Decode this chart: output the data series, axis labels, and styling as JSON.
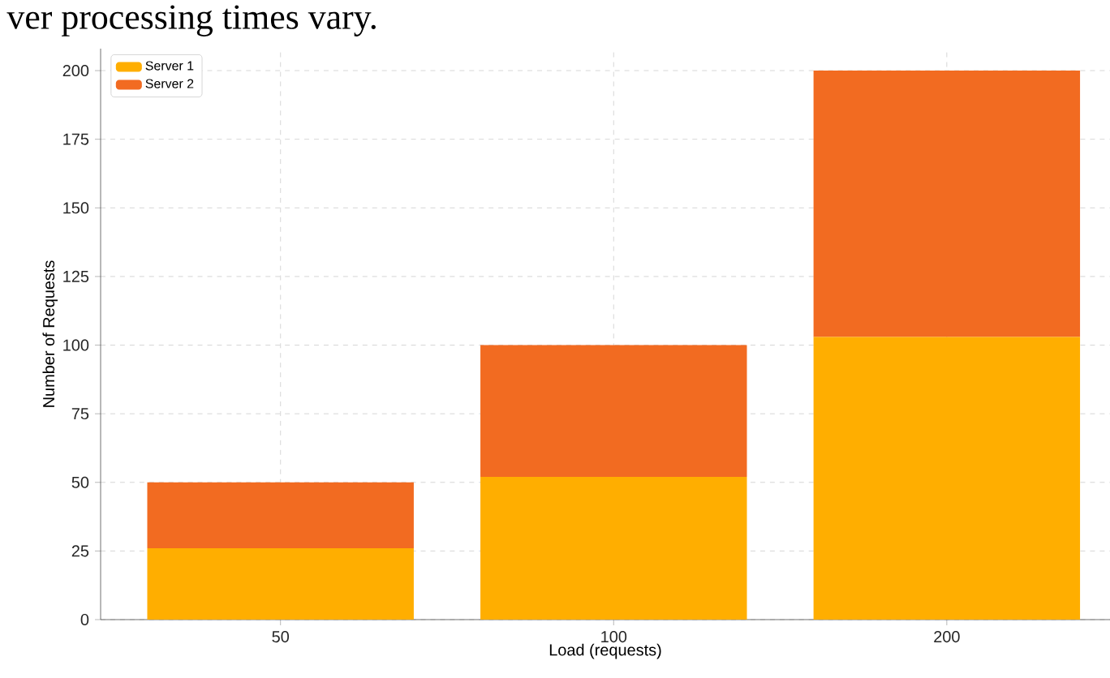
{
  "chart_data": {
    "type": "bar",
    "stacked": true,
    "annotations": [
      "ver processing times vary."
    ],
    "xlabel": "Load (requests)",
    "ylabel": "Number of Requests",
    "categories": [
      "50",
      "100",
      "200"
    ],
    "series": [
      {
        "name": "Server 1",
        "color": "#ffae00",
        "values": [
          26,
          52,
          103
        ]
      },
      {
        "name": "Server 2",
        "color": "#f26b21",
        "values": [
          24,
          48,
          97
        ]
      }
    ],
    "ylim": [
      0,
      208
    ],
    "yticks": [
      0,
      25,
      50,
      75,
      100,
      125,
      150,
      175,
      200
    ],
    "grid": true,
    "legend": "top left"
  }
}
